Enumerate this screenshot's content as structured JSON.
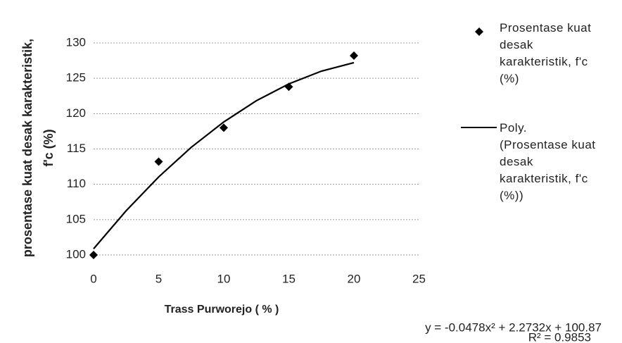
{
  "chart_data": {
    "type": "scatter",
    "x_label": "Trass Purworejo ( % )",
    "y_label": [
      "prosentase kuat desak karakteristik,",
      "f'c (%)"
    ],
    "xlim": [
      0,
      25
    ],
    "xticks": [
      0,
      5,
      10,
      15,
      20,
      25
    ],
    "ylim": [
      100,
      130
    ],
    "yticks": [
      100,
      105,
      110,
      115,
      120,
      125,
      130
    ],
    "grid": true,
    "series": [
      {
        "name": "Prosentase kuat desak karakteristik, f'c (%)",
        "color": "#000000",
        "marker": "diamond",
        "x": [
          0,
          5,
          10,
          15,
          20
        ],
        "values": [
          100,
          113.2,
          118,
          123.8,
          128.2
        ]
      },
      {
        "name": "Poly. (Prosentase kuat desak karakteristik, f'c (%))",
        "color": "#000000",
        "line": true,
        "x": [
          0,
          2.5,
          5,
          7.5,
          10,
          12.5,
          15,
          17.5,
          20
        ],
        "values": [
          100.87,
          106.25,
          111.04,
          115.23,
          118.82,
          121.82,
          124.21,
          126.01,
          127.21
        ]
      }
    ],
    "annotations": [
      "y = -0.0478x² + 2.2732x + 100.87",
      "R² = 0.9853"
    ]
  }
}
